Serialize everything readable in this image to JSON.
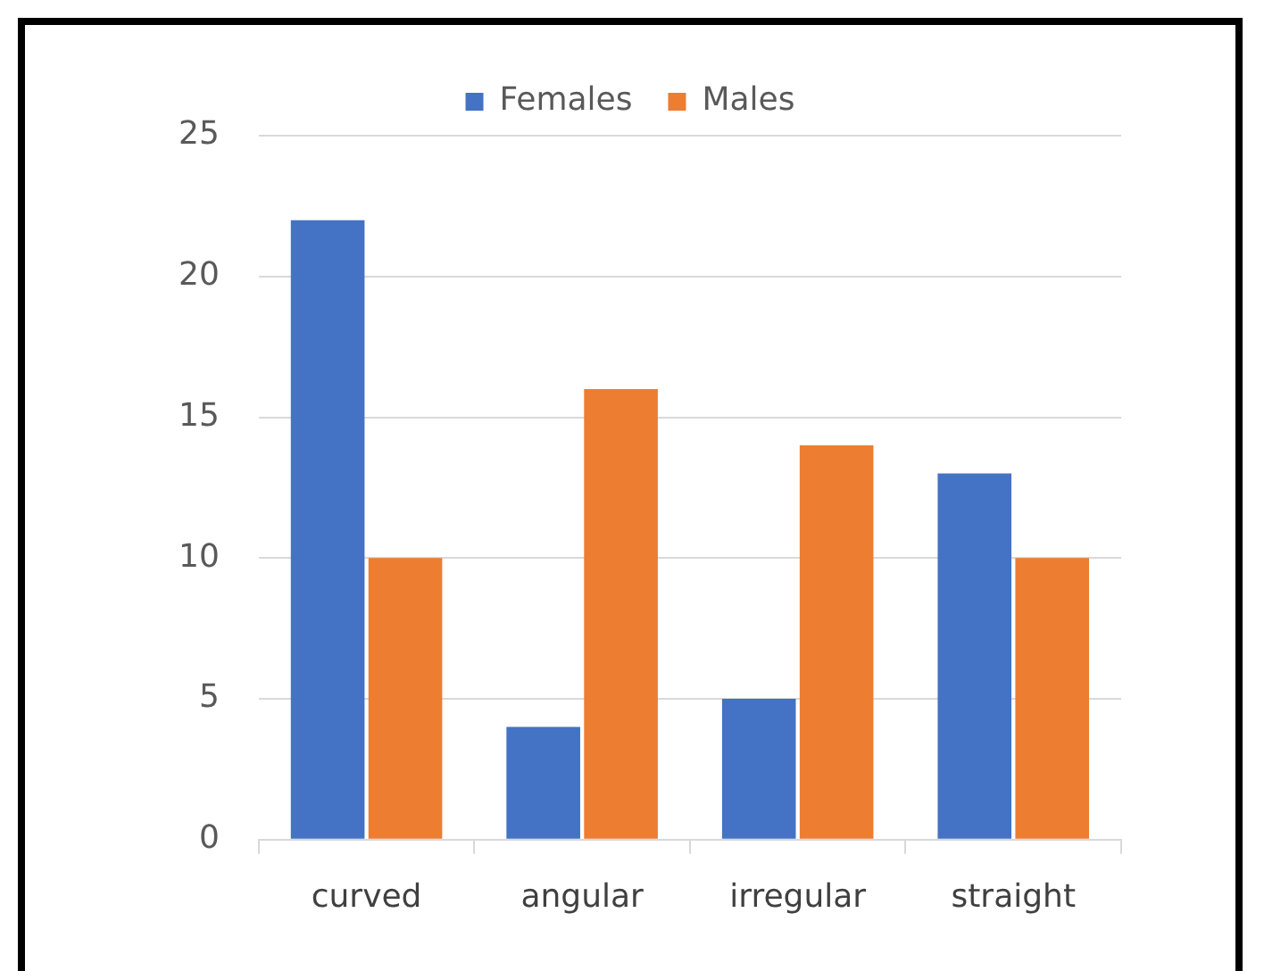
{
  "chart_data": {
    "type": "bar",
    "categories": [
      "curved",
      "angular",
      "irregular",
      "straight"
    ],
    "series": [
      {
        "name": "Females",
        "color": "#4472c4",
        "values": [
          22,
          4,
          5,
          13
        ]
      },
      {
        "name": "Males",
        "color": "#ed7d31",
        "values": [
          10,
          16,
          14,
          10
        ]
      }
    ],
    "ylim": [
      0,
      25
    ],
    "yticks": [
      0,
      5,
      10,
      15,
      20,
      25
    ],
    "grid": "y",
    "legend": "top"
  }
}
